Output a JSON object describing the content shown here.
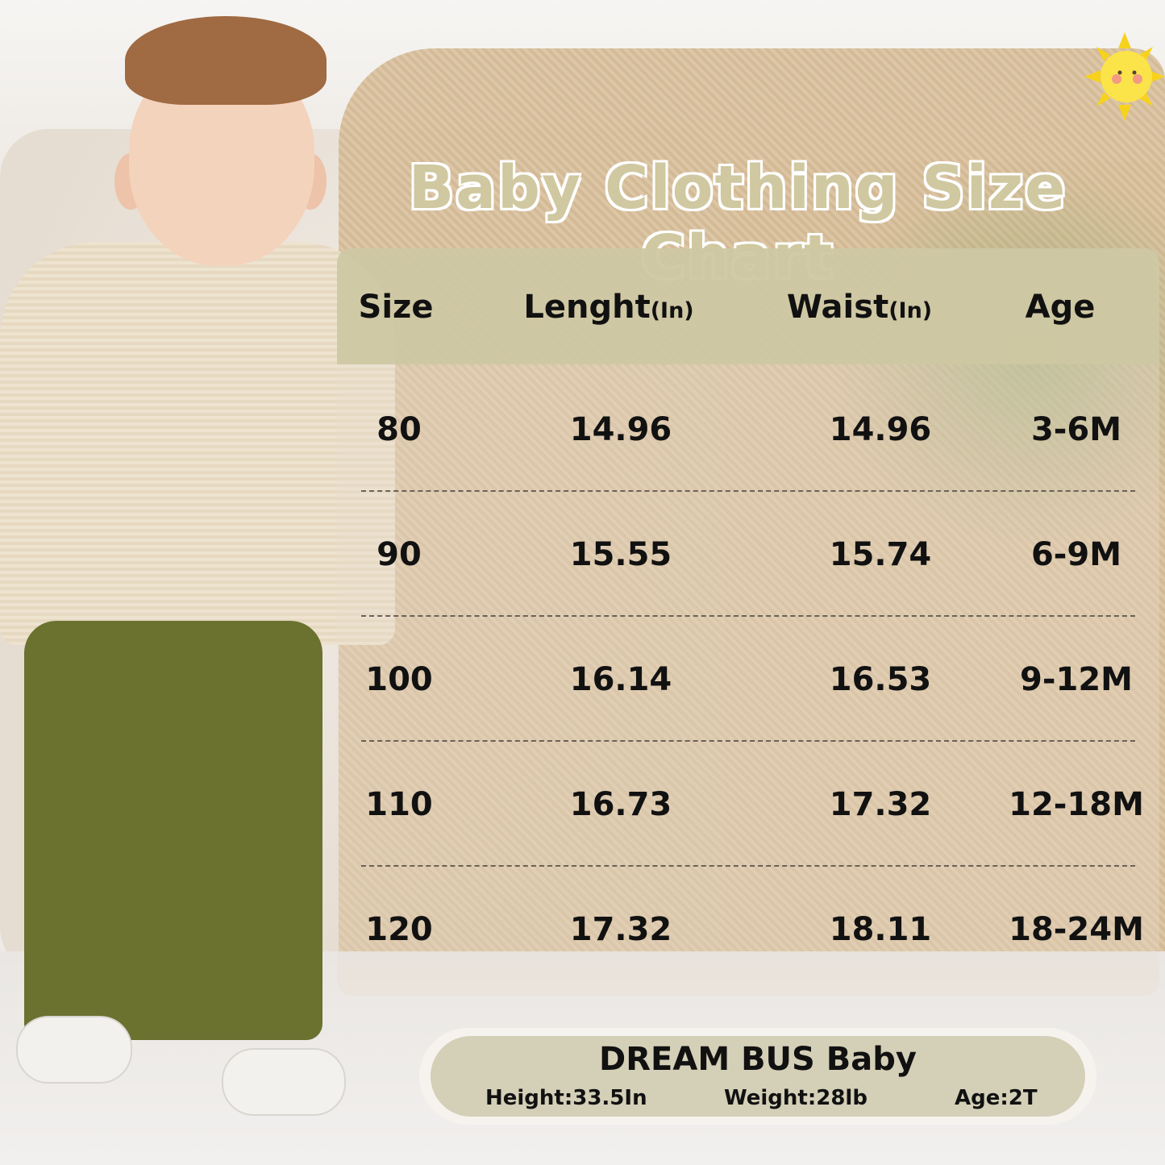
{
  "title": "Baby Clothing Size Chart",
  "table": {
    "headers": [
      {
        "label": "Size",
        "unit": ""
      },
      {
        "label": "Lenght",
        "unit": "(In)"
      },
      {
        "label": "Waist",
        "unit": "(In)"
      },
      {
        "label": "Age",
        "unit": ""
      }
    ],
    "rows": [
      [
        "80",
        "14.96",
        "14.96",
        "3-6M"
      ],
      [
        "90",
        "15.55",
        "15.74",
        "6-9M"
      ],
      [
        "100",
        "16.14",
        "16.53",
        "9-12M"
      ],
      [
        "110",
        "16.73",
        "17.32",
        "12-18M"
      ],
      [
        "120",
        "17.32",
        "18.11",
        "18-24M"
      ]
    ]
  },
  "model": {
    "brand": "DREAM BUS Baby",
    "height": "Height:33.5In",
    "weight": "Weight:28lb",
    "age": "Age:2T"
  },
  "colors": {
    "header_bg": "#cdc7a3",
    "title": "#cfc8a0",
    "pill_bg": "#d4cfb7"
  },
  "icons": [
    "sun-icon"
  ]
}
